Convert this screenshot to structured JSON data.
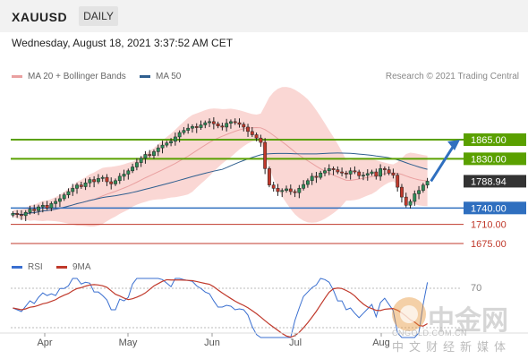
{
  "header": {
    "symbol": "XAUUSD",
    "timeframe": "DAILY"
  },
  "date_line": "Wednesday, August 18, 2021 3:37:52 AM CET",
  "legend": {
    "ma20": "MA 20 + Bollinger Bands",
    "ma50": "MA 50",
    "credit": "Research © 2021 Trading Central",
    "rsi": "RSI",
    "ma9": "9MA"
  },
  "colors": {
    "up": "#2e8b57",
    "down": "#c0392b",
    "bb": "#f5b7b1",
    "ma20": "#e9a0a0",
    "ma50": "#2f5f8f",
    "green_level": "#5aa000",
    "blue_level": "#2f6fbf",
    "red_level": "#c0392b",
    "last": "#333333",
    "rsi": "#3a6fd0",
    "rsi_ma": "#c0392b"
  },
  "watermark": {
    "brand": "中金网",
    "site": "CNGOLD.COM.CN",
    "tagline": "中文财经新媒体"
  },
  "chart_data": {
    "type": "candlestick",
    "title": "XAUUSD DAILY",
    "x_labels": [
      "Apr",
      "May",
      "Jun",
      "Jul",
      "Aug"
    ],
    "price_levels": [
      {
        "label": "1865.00",
        "value": 1865,
        "kind": "resistance"
      },
      {
        "label": "1830.00",
        "value": 1830,
        "kind": "resistance"
      },
      {
        "label": "1788.94",
        "value": 1788.94,
        "kind": "last"
      },
      {
        "label": "1740.00",
        "value": 1740,
        "kind": "pivot"
      },
      {
        "label": "1710.00",
        "value": 1710,
        "kind": "support"
      },
      {
        "label": "1675.00",
        "value": 1675,
        "kind": "support"
      }
    ],
    "closes": [
      1730,
      1728,
      1726,
      1732,
      1738,
      1735,
      1742,
      1745,
      1740,
      1748,
      1752,
      1757,
      1764,
      1770,
      1776,
      1782,
      1779,
      1786,
      1792,
      1788,
      1794,
      1796,
      1788,
      1784,
      1790,
      1798,
      1802,
      1808,
      1815,
      1823,
      1831,
      1838,
      1836,
      1843,
      1850,
      1855,
      1859,
      1862,
      1870,
      1878,
      1882,
      1886,
      1889,
      1887,
      1892,
      1896,
      1898,
      1894,
      1890,
      1888,
      1895,
      1898,
      1896,
      1893,
      1888,
      1880,
      1874,
      1868,
      1860,
      1812,
      1782,
      1776,
      1770,
      1772,
      1775,
      1770,
      1768,
      1776,
      1783,
      1790,
      1798,
      1796,
      1804,
      1808,
      1812,
      1810,
      1806,
      1804,
      1802,
      1808,
      1806,
      1799,
      1800,
      1803,
      1806,
      1798,
      1812,
      1810,
      1804,
      1800,
      1778,
      1760,
      1745,
      1752,
      1766,
      1772,
      1782,
      1788.94
    ],
    "rsi_axis_label": "70"
  }
}
